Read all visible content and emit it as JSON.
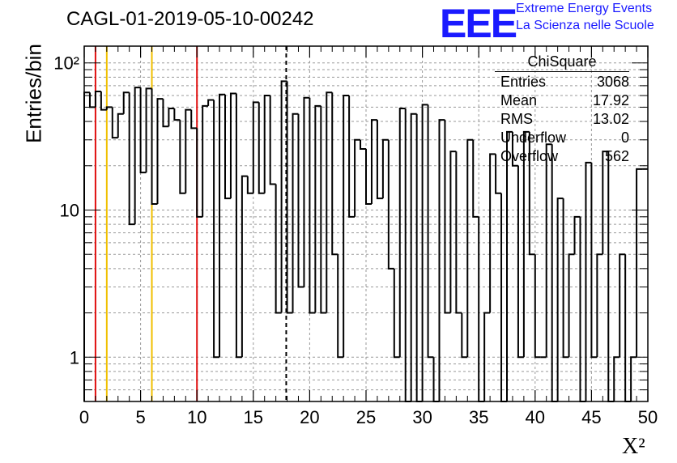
{
  "header": {
    "title": "CAGL-01-2019-05-10-00242",
    "logo_text": "EEE",
    "logo_line1": "Extreme Energy Events",
    "logo_line2": "La Scienza nelle Scuole"
  },
  "stats_box": {
    "title": "ChiSquare",
    "rows": [
      {
        "label": "Entries",
        "value": "3068"
      },
      {
        "label": "Mean",
        "value": "17.92"
      },
      {
        "label": "RMS",
        "value": "13.02"
      },
      {
        "label": "Underflow",
        "value": "0"
      },
      {
        "label": "Overflow",
        "value": "562"
      }
    ]
  },
  "colors": {
    "red_line": "#e01010",
    "yellow_line": "#f0c000",
    "histogram": "#000000",
    "grid": "#999999"
  },
  "chart_data": {
    "type": "bar",
    "style": "step-histogram",
    "title": "",
    "xlabel": "X²",
    "ylabel": "Entries/bin",
    "xlim": [
      0,
      50
    ],
    "ylim": [
      0.5,
      130
    ],
    "yscale": "log",
    "bin_width": 0.5,
    "x_ticks": [
      "0",
      "5",
      "10",
      "15",
      "20",
      "25",
      "30",
      "35",
      "40",
      "45",
      "50"
    ],
    "y_ticks": [
      "1",
      "10",
      "10²"
    ],
    "grid": true,
    "values": [
      63,
      50,
      64,
      48,
      50,
      31,
      45,
      63,
      8,
      68,
      18,
      67,
      11,
      57,
      37,
      49,
      41,
      13,
      48,
      36,
      9,
      51,
      56,
      1,
      61,
      12,
      62,
      1,
      17,
      13,
      54,
      13,
      60,
      15,
      2,
      75,
      2,
      45,
      3,
      58,
      2,
      51,
      2,
      63,
      5,
      1,
      60,
      9,
      30,
      26,
      11,
      41,
      12,
      30,
      4,
      1,
      49,
      0.3,
      45,
      0.3,
      52,
      1,
      0.3,
      41,
      2,
      25,
      2,
      1,
      30,
      9,
      0.3,
      2,
      24,
      13,
      0.3,
      34,
      20,
      1,
      34,
      5,
      1,
      1,
      28,
      0.3,
      12,
      1,
      5,
      9,
      0.3,
      21,
      1,
      5,
      25,
      0.3,
      1,
      5,
      0.3,
      1,
      19,
      19
    ],
    "vertical_lines": [
      {
        "x": 1,
        "color": "red",
        "style": "solid"
      },
      {
        "x": 2,
        "color": "yellow",
        "style": "solid"
      },
      {
        "x": 6,
        "color": "yellow",
        "style": "solid"
      },
      {
        "x": 10,
        "color": "red",
        "style": "solid"
      },
      {
        "x": 17.92,
        "color": "black",
        "style": "dashed"
      }
    ]
  }
}
